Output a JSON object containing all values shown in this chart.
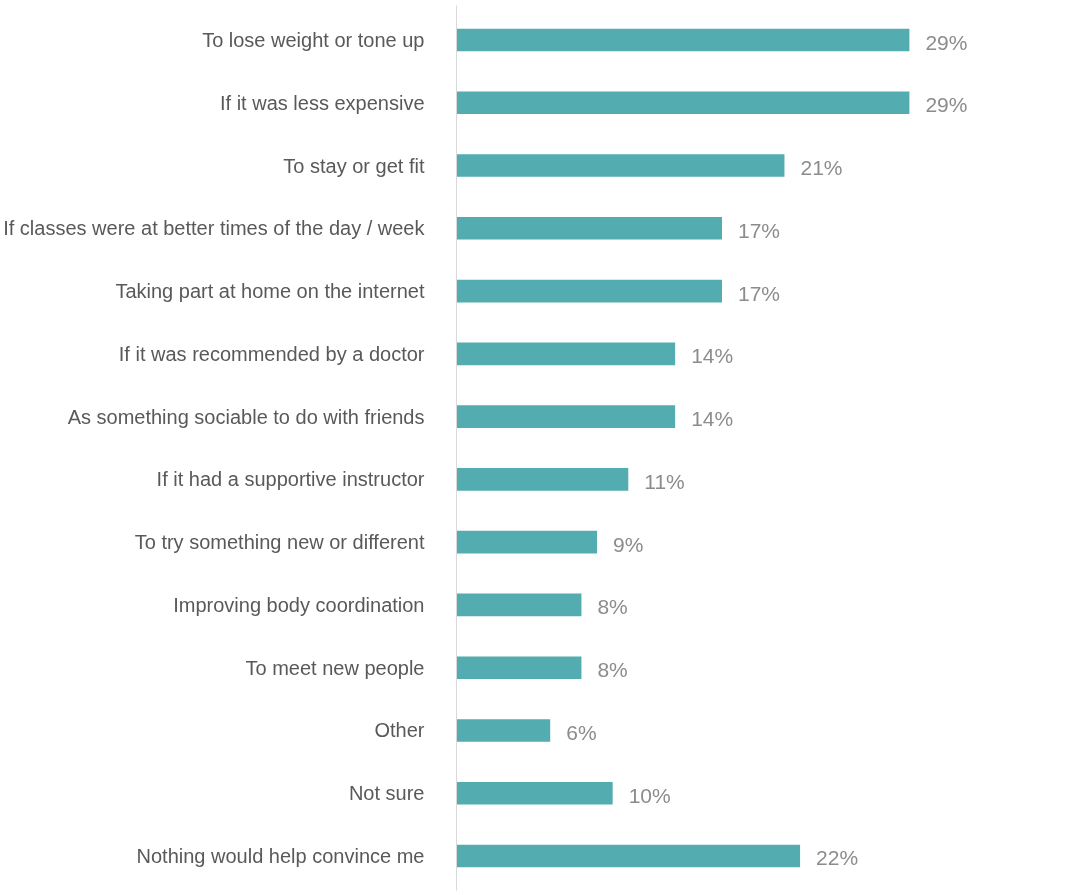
{
  "chart_data": {
    "type": "bar",
    "orientation": "horizontal",
    "categories": [
      "To lose weight or tone up",
      "If it was less expensive",
      "To stay or get fit",
      "If classes were at better times of the day / week",
      "Taking part at home on the internet",
      "If it was recommended by a doctor",
      "As something sociable to do with friends",
      "If it had a supportive instructor",
      "To try something new or different",
      "Improving body coordination",
      "To meet new people",
      "Other",
      "Not sure",
      "Nothing would help convince me"
    ],
    "values": [
      29,
      29,
      21,
      17,
      17,
      14,
      14,
      11,
      9,
      8,
      8,
      6,
      10,
      22
    ],
    "value_labels": [
      "29%",
      "29%",
      "21%",
      "17%",
      "17%",
      "14%",
      "14%",
      "11%",
      "9%",
      "8%",
      "8%",
      "6%",
      "10%",
      "22%"
    ],
    "color": "#53adb0",
    "grid": false
  }
}
